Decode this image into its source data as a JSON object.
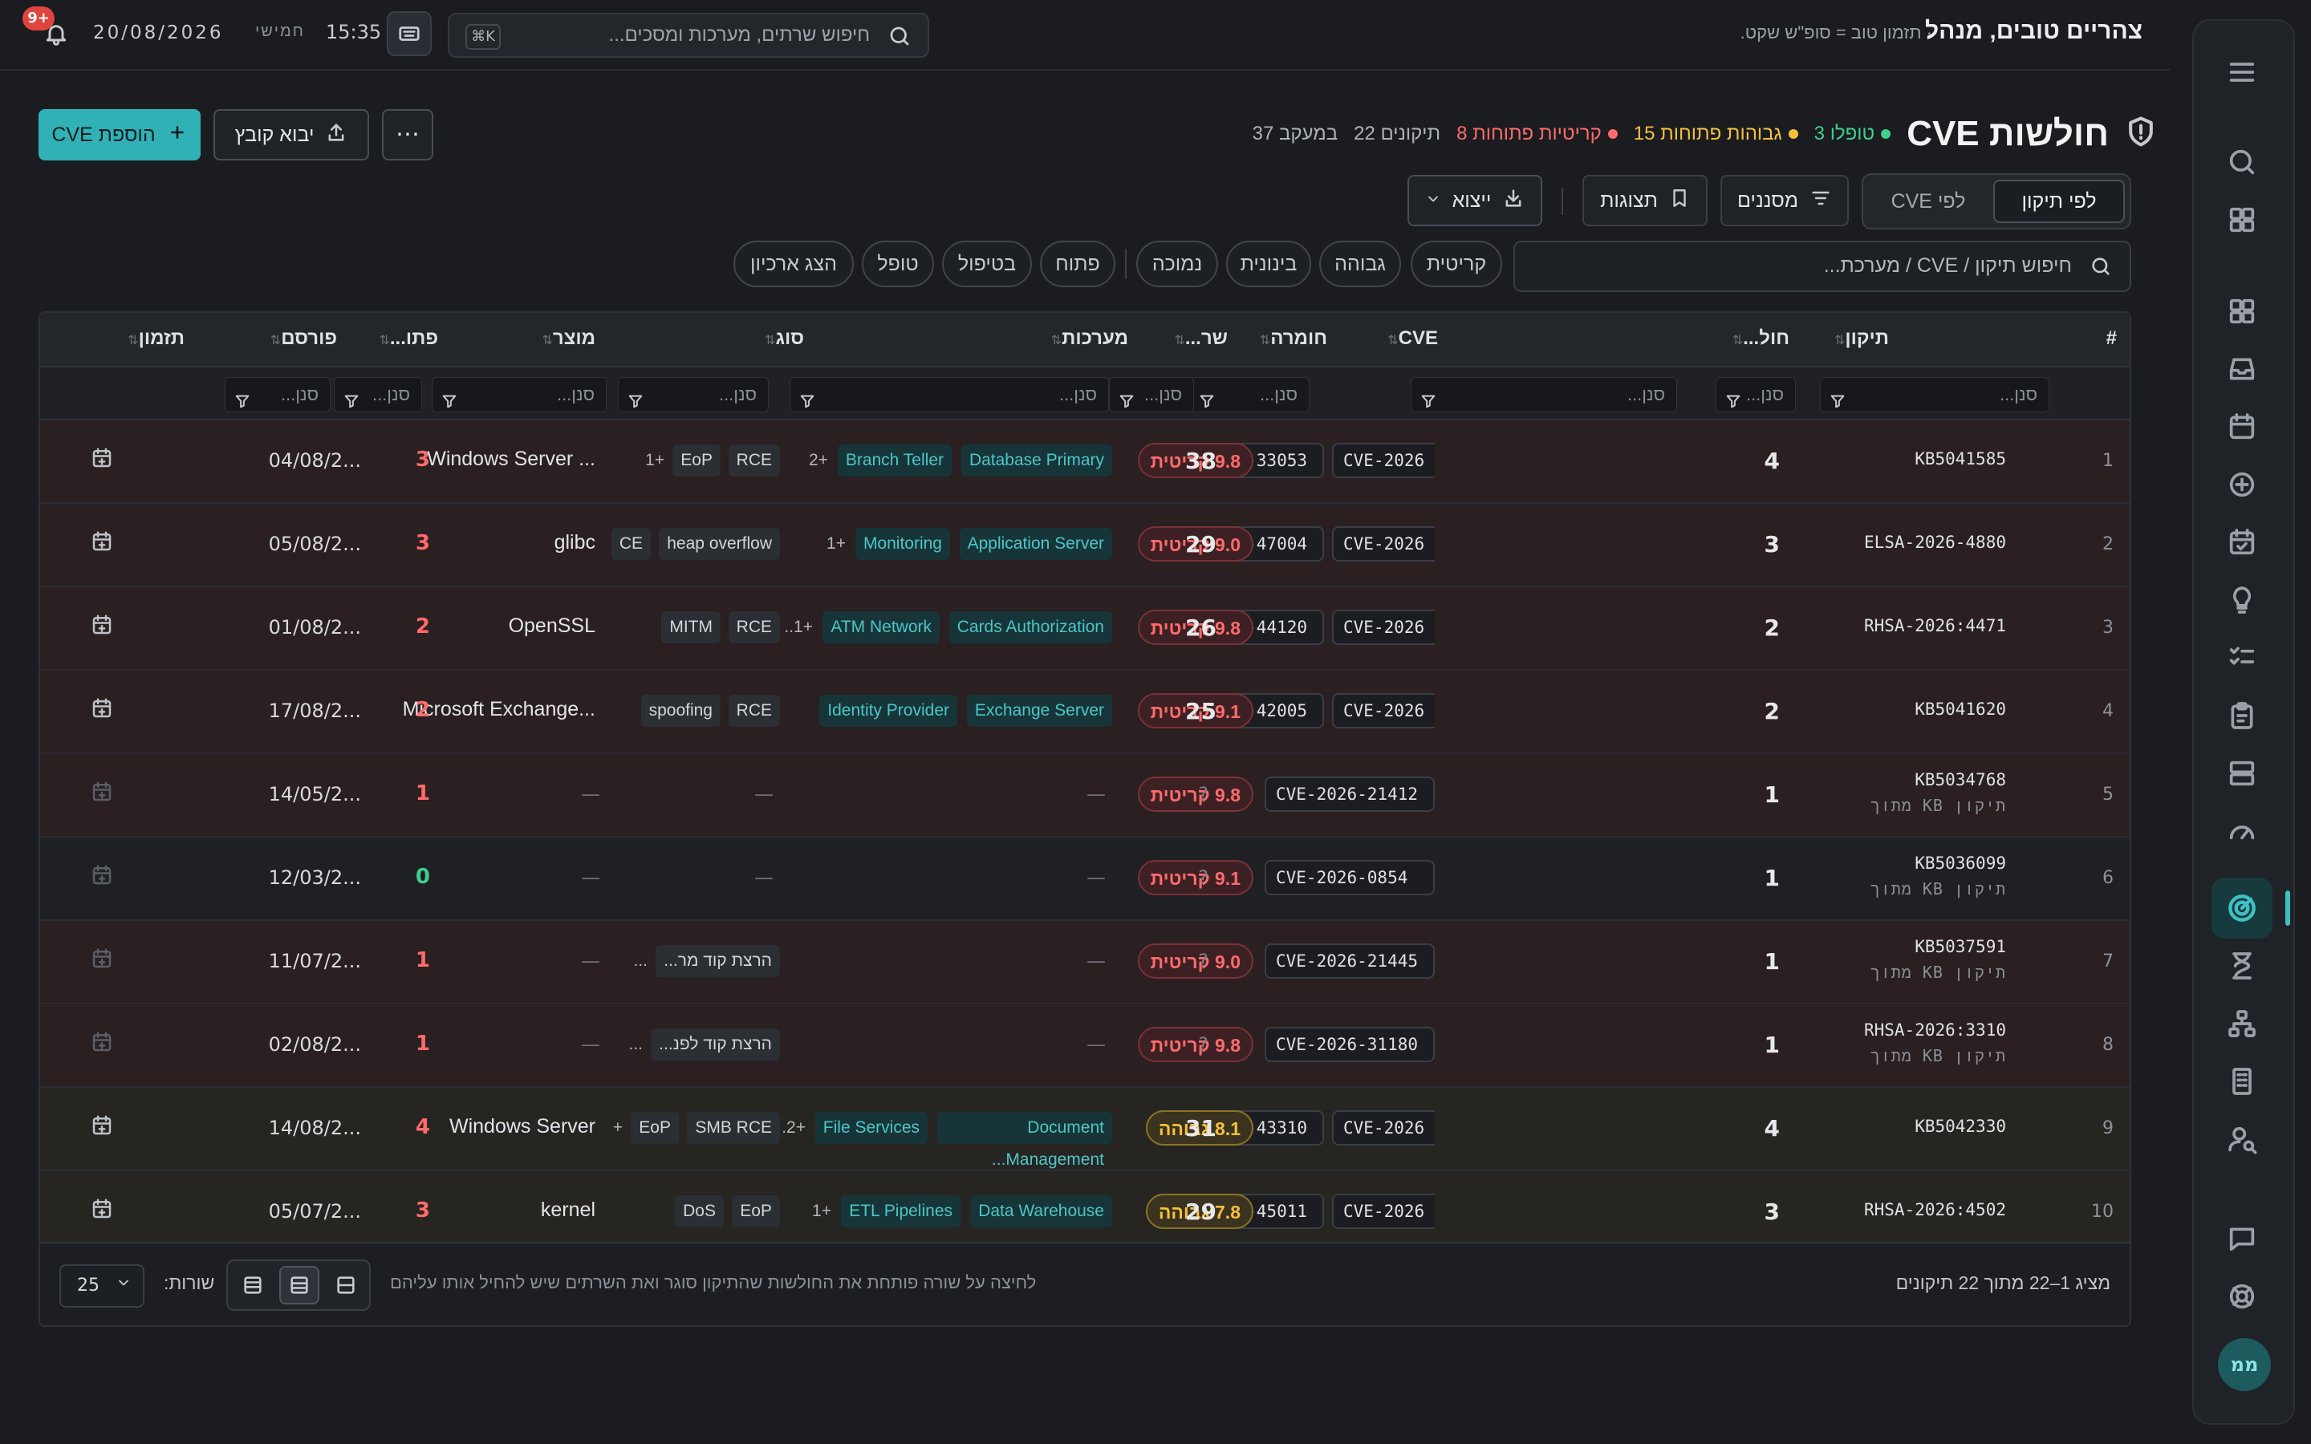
{
  "topbar": {
    "greeting": "צהריים טובים, מנהל",
    "tagline": "· תזמון טוב = סופ\"ש שקט.",
    "search_placeholder": "חיפוש שרתים, מערכות ומסכים...",
    "shortcut": "⌘K",
    "time": "15:35",
    "day": "חמישי",
    "date": "20/08/2026",
    "notifications": "9+"
  },
  "header": {
    "title": "חולשות CVE",
    "stats": [
      {
        "label": "טופלו 3",
        "color": "#3ecf8e"
      },
      {
        "label": "גבוהות פתוחות 15",
        "color": "#f6c13a"
      },
      {
        "label": "קריטיות פתוחות 8",
        "color": "#ff6b6b"
      },
      {
        "label": "תיקונים 22",
        "color": ""
      },
      {
        "label": "במעקב 37",
        "color": ""
      }
    ],
    "add_button": "הוספת CVE",
    "import_button": "יבוא קובץ",
    "more_button": "⋯"
  },
  "view": {
    "by_fix": "לפי תיקון",
    "by_cve": "לפי CVE",
    "filters": "מסננים",
    "views": "תצוגות",
    "export": "ייצוא"
  },
  "filterbar": {
    "search_placeholder": "חיפוש תיקון / CVE / מערכת...",
    "chips": [
      "קריטית",
      "גבוהה",
      "בינונית",
      "נמוכה",
      "פתוח",
      "בטיפול",
      "טופל",
      "הצג ארכיון"
    ]
  },
  "table": {
    "columns": [
      "#",
      "תיקון",
      "חול...",
      "CVE",
      "חומרה",
      "שר...",
      "מערכות",
      "סוג",
      "מוצר",
      "פתו...",
      "פורסם",
      "תזמון"
    ],
    "filter_placeholder": "סנן...",
    "rows": [
      {
        "n": "1",
        "fix": "KB5041585",
        "sub": "",
        "count": "4",
        "cve1": "CVE-2026-33053",
        "cve2": "CVE-2026",
        "sev": "9.8 קריטית",
        "sevType": "crit",
        "servers": "38",
        "systems": [
          "Database Primary",
          "Branch Teller"
        ],
        "sysMore": "+2",
        "types": [
          "RCE",
          "EoP"
        ],
        "typeMore": "+1",
        "product": "Windows Server ...",
        "open": "3",
        "openColor": "#ff6b6b",
        "published": "04/08/2...",
        "row": "red",
        "calDim": false
      },
      {
        "n": "2",
        "fix": "ELSA-2026-4880",
        "sub": "",
        "count": "3",
        "cve1": "CVE-2026-47004",
        "cve2": "CVE-2026",
        "sev": "9.0 קריטית",
        "sevType": "crit",
        "servers": "29",
        "systems": [
          "Application Server",
          "Monitoring"
        ],
        "sysMore": "+1",
        "types": [
          "heap overflow",
          "CE"
        ],
        "typeMore": "",
        "product": "glibc",
        "open": "3",
        "openColor": "#ff6b6b",
        "published": "05/08/2...",
        "row": "red",
        "calDim": false
      },
      {
        "n": "3",
        "fix": "RHSA-2026:4471",
        "sub": "",
        "count": "2",
        "cve1": "CVE-2026-44120",
        "cve2": "CVE-2026",
        "sev": "9.8 קריטית",
        "sevType": "crit",
        "servers": "26",
        "systems": [
          "Cards Authorization",
          "ATM Network"
        ],
        "sysMore": "+1..",
        "types": [
          "RCE",
          "MITM"
        ],
        "typeMore": "",
        "product": "OpenSSL",
        "open": "2",
        "openColor": "#ff6b6b",
        "published": "01/08/2...",
        "row": "red",
        "calDim": false
      },
      {
        "n": "4",
        "fix": "KB5041620",
        "sub": "",
        "count": "2",
        "cve1": "CVE-2026-42005",
        "cve2": "CVE-2026",
        "sev": "9.1 קריטית",
        "sevType": "crit",
        "servers": "25",
        "systems": [
          "Exchange Server",
          "Identity Provider"
        ],
        "sysMore": "",
        "types": [
          "RCE",
          "spoofing"
        ],
        "typeMore": "",
        "product": "Microsoft Exchange...",
        "open": "2",
        "openColor": "#ff6b6b",
        "published": "17/08/2...",
        "row": "red",
        "calDim": false
      },
      {
        "n": "5",
        "fix": "KB5034768",
        "sub": "תיקון KB מתוך",
        "count": "1",
        "cve1": "CVE-2026-21412",
        "cve2": "",
        "sev": "9.8 קריטית",
        "sevType": "crit",
        "servers": "?",
        "systems": [],
        "sysMore": "",
        "types": [],
        "typeMore": "",
        "product": "—",
        "open": "1",
        "openColor": "#ff6b6b",
        "published": "14/05/2...",
        "row": "red",
        "calDim": true
      },
      {
        "n": "6",
        "fix": "KB5036099",
        "sub": "תיקון KB מתוך",
        "count": "1",
        "cve1": "CVE-2026-0854",
        "cve2": "",
        "sev": "9.1 קריטית",
        "sevType": "crit",
        "servers": "?",
        "systems": [],
        "sysMore": "",
        "types": [],
        "typeMore": "",
        "product": "—",
        "open": "0",
        "openColor": "#3ecf8e",
        "published": "12/03/2...",
        "row": "plain",
        "calDim": true
      },
      {
        "n": "7",
        "fix": "KB5037591",
        "sub": "תיקון KB מתוך",
        "count": "1",
        "cve1": "CVE-2026-21445",
        "cve2": "",
        "sev": "9.0 קריטית",
        "sevType": "crit",
        "servers": "?",
        "systems": [],
        "sysMore": "",
        "types": [
          "הרצת קוד מר..."
        ],
        "typeMore": "...",
        "product": "—",
        "open": "1",
        "openColor": "#ff6b6b",
        "published": "11/07/2...",
        "row": "red",
        "calDim": true
      },
      {
        "n": "8",
        "fix": "RHSA-2026:3310",
        "sub": "תיקון KB מתוך",
        "count": "1",
        "cve1": "CVE-2026-31180",
        "cve2": "",
        "sev": "9.8 קריטית",
        "sevType": "crit",
        "servers": "?",
        "systems": [],
        "sysMore": "",
        "types": [
          "הרצת קוד לפנ..."
        ],
        "typeMore": "...",
        "product": "—",
        "open": "1",
        "openColor": "#ff6b6b",
        "published": "02/08/2...",
        "row": "red",
        "calDim": true
      },
      {
        "n": "9",
        "fix": "KB5042330",
        "sub": "",
        "count": "4",
        "cve1": "CVE-2026-43310",
        "cve2": "CVE-2026",
        "sev": "8.1 גבוהה",
        "sevType": "high",
        "servers": "31",
        "systems": [
          "Document Management...",
          "File Services"
        ],
        "sysMore": "+2.",
        "types": [
          "SMB RCE",
          "EoP"
        ],
        "typeMore": "+",
        "product": "Windows Server",
        "open": "4",
        "openColor": "#ff6b6b",
        "published": "14/08/2...",
        "row": "orange",
        "calDim": false
      },
      {
        "n": "10",
        "fix": "RHSA-2026:4502",
        "sub": "",
        "count": "3",
        "cve1": "CVE-2026-45011",
        "cve2": "CVE-2026",
        "sev": "7.8 גבוהה",
        "sevType": "high",
        "servers": "29",
        "systems": [
          "Data Warehouse",
          "ETL Pipelines"
        ],
        "sysMore": "+1",
        "types": [
          "EoP",
          "DoS"
        ],
        "typeMore": "",
        "product": "kernel",
        "open": "3",
        "openColor": "#ff6b6b",
        "published": "05/07/2...",
        "row": "orange",
        "calDim": false
      }
    ]
  },
  "footer": {
    "showing": "מציג 1–22 מתוך 22 תיקונים",
    "hint": "לחיצה על שורה פותחת את החולשות שהתיקון סוגר ואת השרתים שיש להחיל אותו עליהם",
    "rows_label": "שורות:",
    "rows_value": "25"
  },
  "sidebar": {
    "avatar": "ממ",
    "icons": [
      "menu-icon",
      "search-icon",
      "apps-icon",
      "dashboard-icon",
      "inbox-icon",
      "calendar-icon",
      "add-circle-icon",
      "calendar-check-icon",
      "lightbulb-icon",
      "checklist-icon",
      "clipboard-icon",
      "servers-icon",
      "gauge-icon",
      "radar-icon",
      "hourglass-icon",
      "sitemap-icon",
      "building-icon",
      "user-search-icon",
      "chat-icon",
      "support-icon"
    ]
  }
}
